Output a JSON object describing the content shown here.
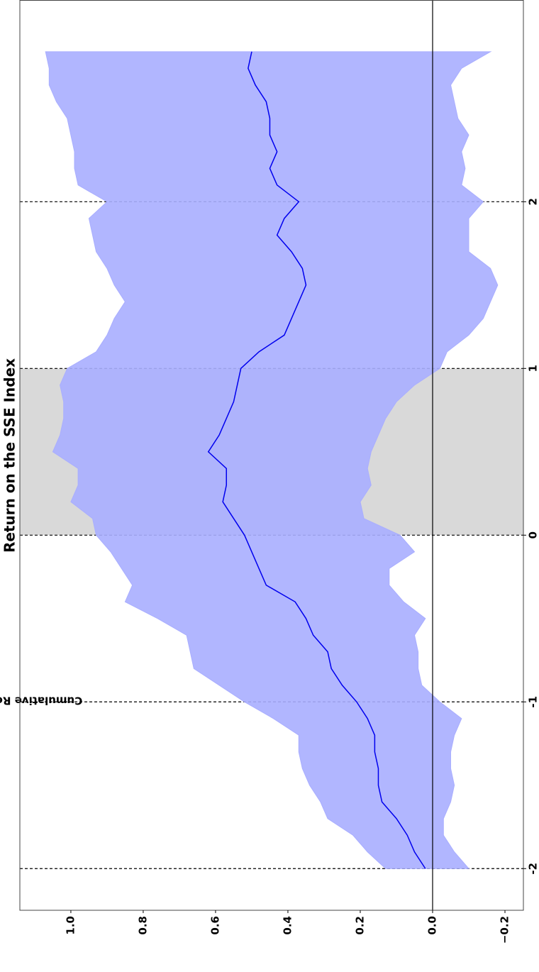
{
  "chart_data": {
    "type": "line",
    "title": "Return on the SSE Index",
    "ylabel": "Cumulative Return (%)",
    "x": [
      -2,
      -1.9,
      -1.8,
      -1.7,
      -1.6,
      -1.5,
      -1.4,
      -1.3,
      -1.2,
      -1.1,
      -1.0,
      -0.9,
      -0.8,
      -0.7,
      -0.6,
      -0.5,
      -0.4,
      -0.3,
      -0.2,
      -0.1,
      0,
      0.1,
      0.2,
      0.3,
      0.4,
      0.5,
      0.6,
      0.7,
      0.8,
      0.9,
      1.0,
      1.1,
      1.2,
      1.3,
      1.4,
      1.5,
      1.6,
      1.7,
      1.8,
      1.9,
      2.0,
      2.1,
      2.2,
      2.3,
      2.4,
      2.5,
      2.6,
      2.7,
      2.8,
      2.9
    ],
    "series": [
      {
        "color": "#0000ee",
        "values": [
          0.02,
          0.05,
          0.07,
          0.1,
          0.14,
          0.15,
          0.15,
          0.16,
          0.16,
          0.18,
          0.21,
          0.25,
          0.28,
          0.29,
          0.33,
          0.35,
          0.38,
          0.46,
          0.48,
          0.5,
          0.52,
          0.55,
          0.58,
          0.57,
          0.57,
          0.62,
          0.59,
          0.57,
          0.55,
          0.54,
          0.53,
          0.48,
          0.41,
          0.39,
          0.37,
          0.35,
          0.36,
          0.39,
          0.43,
          0.41,
          0.37,
          0.43,
          0.45,
          0.43,
          0.45,
          0.45,
          0.46,
          0.49,
          0.51,
          0.5
        ]
      }
    ],
    "band": {
      "color": "#a9aeff",
      "upper": [
        0.13,
        0.18,
        0.22,
        0.29,
        0.31,
        0.34,
        0.36,
        0.37,
        0.37,
        0.44,
        0.52,
        0.59,
        0.66,
        0.67,
        0.68,
        0.76,
        0.85,
        0.83,
        0.86,
        0.89,
        0.93,
        0.94,
        1.0,
        0.98,
        0.98,
        1.05,
        1.03,
        1.02,
        1.02,
        1.03,
        1.01,
        0.93,
        0.9,
        0.88,
        0.85,
        0.88,
        0.9,
        0.93,
        0.94,
        0.95,
        0.9,
        0.98,
        0.99,
        0.99,
        1.0,
        1.01,
        1.04,
        1.06,
        1.06,
        1.07
      ],
      "lower": [
        -0.1,
        -0.06,
        -0.03,
        -0.03,
        -0.05,
        -0.06,
        -0.05,
        -0.05,
        -0.06,
        -0.08,
        -0.02,
        0.03,
        0.04,
        0.04,
        0.05,
        0.02,
        0.08,
        0.12,
        0.12,
        0.05,
        0.09,
        0.19,
        0.2,
        0.17,
        0.18,
        0.17,
        0.15,
        0.13,
        0.1,
        0.05,
        -0.02,
        -0.04,
        -0.1,
        -0.14,
        -0.16,
        -0.18,
        -0.16,
        -0.1,
        -0.1,
        -0.1,
        -0.14,
        -0.08,
        -0.09,
        -0.08,
        -0.1,
        -0.07,
        -0.06,
        -0.05,
        -0.08,
        -0.16
      ]
    },
    "shaded_span": {
      "range": [
        0,
        1
      ],
      "color": "#d9d9d9"
    },
    "vlines": [
      -2,
      -1,
      0,
      1,
      2
    ],
    "hline": 0,
    "xlim": [
      -2.25,
      3.21
    ],
    "ylim": [
      -0.251,
      1.141
    ],
    "xticks": [
      -2,
      -1,
      0,
      1,
      2
    ],
    "yticks": [
      {
        "value": -0.2,
        "label": "−0.2"
      },
      {
        "value": 0,
        "label": "0.0"
      },
      0.2,
      0.4,
      0.6,
      0.8,
      {
        "value": 1,
        "label": "1.0"
      }
    ]
  }
}
